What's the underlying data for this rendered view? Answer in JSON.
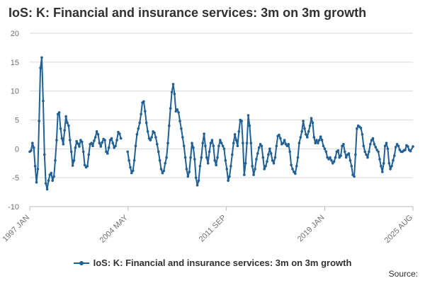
{
  "title": "IoS: K: Financial and insurance services: 3m on 3m growth",
  "legend_label": "IoS: K: Financial and insurance services: 3m on 3m growth",
  "source_label": "Source:",
  "colors": {
    "series": "#206095",
    "grid": "#d9d9d9",
    "text": "#323132"
  },
  "chart_data": {
    "type": "line",
    "title": "IoS: K: Financial and insurance services: 3m on 3m growth",
    "xlabel": "",
    "ylabel": "",
    "ylim": [
      -10,
      20
    ],
    "yticks": [
      -10,
      -5,
      0,
      5,
      10,
      15,
      20
    ],
    "xlim": [
      1997.0,
      2025.583
    ],
    "xticks": [
      {
        "label": "1997 JAN",
        "x": 1997.0
      },
      {
        "label": "2004 MAY",
        "x": 2004.333
      },
      {
        "label": "2011 SEP",
        "x": 2011.667
      },
      {
        "label": "2019 JAN",
        "x": 2019.0
      },
      {
        "label": "2025 AUG",
        "x": 2025.583
      }
    ],
    "series": [
      {
        "name": "IoS: K: Financial and insurance services: 3m on 3m growth",
        "points": [
          [
            1997.0,
            -0.5
          ],
          [
            1997.1,
            -0.3
          ],
          [
            1997.2,
            1.0
          ],
          [
            1997.3,
            0.2
          ],
          [
            1997.4,
            -3.0
          ],
          [
            1997.5,
            -5.8
          ],
          [
            1997.6,
            -3.5
          ],
          [
            1997.7,
            4.8
          ],
          [
            1997.8,
            14.0
          ],
          [
            1997.9,
            15.8
          ],
          [
            1998.0,
            8.3
          ],
          [
            1998.1,
            -1.0
          ],
          [
            1998.2,
            -6.0
          ],
          [
            1998.3,
            -7.0
          ],
          [
            1998.4,
            -5.5
          ],
          [
            1998.5,
            -4.5
          ],
          [
            1998.6,
            -4.2
          ],
          [
            1998.7,
            -5.5
          ],
          [
            1998.8,
            -4.8
          ],
          [
            1998.9,
            -2.0
          ],
          [
            1999.0,
            1.5
          ],
          [
            1999.1,
            6.0
          ],
          [
            1999.2,
            6.3
          ],
          [
            1999.3,
            3.5
          ],
          [
            1999.4,
            1.8
          ],
          [
            1999.5,
            0.8
          ],
          [
            1999.6,
            3.2
          ],
          [
            1999.7,
            5.6
          ],
          [
            1999.8,
            4.5
          ],
          [
            1999.9,
            4.0
          ],
          [
            2000.0,
            1.5
          ],
          [
            2000.1,
            -0.5
          ],
          [
            2000.2,
            -2.9
          ],
          [
            2000.3,
            -2.0
          ],
          [
            2000.4,
            0.2
          ],
          [
            2000.5,
            1.3
          ],
          [
            2000.6,
            0.9
          ],
          [
            2000.7,
            0.4
          ],
          [
            2000.8,
            1.5
          ],
          [
            2000.9,
            1.2
          ],
          [
            2001.0,
            -0.5
          ],
          [
            2001.1,
            -2.8
          ],
          [
            2001.2,
            -3.2
          ],
          [
            2001.3,
            -3.0
          ],
          [
            2001.4,
            -1.0
          ],
          [
            2001.5,
            0.8
          ],
          [
            2001.6,
            1.0
          ],
          [
            2001.7,
            0.5
          ],
          [
            2001.8,
            1.4
          ],
          [
            2001.9,
            2.0
          ],
          [
            2002.0,
            3.0
          ],
          [
            2002.1,
            2.5
          ],
          [
            2002.2,
            1.0
          ],
          [
            2002.3,
            0.4
          ],
          [
            2002.4,
            1.1
          ],
          [
            2002.5,
            1.7
          ],
          [
            2002.6,
            1.5
          ],
          [
            2002.7,
            -0.5
          ],
          [
            2002.8,
            -0.8
          ],
          [
            2002.9,
            0.2
          ],
          [
            2003.0,
            1.5
          ],
          [
            2003.1,
            1.8
          ],
          [
            2003.2,
            1.0
          ],
          [
            2003.3,
            0.2
          ],
          [
            2003.4,
            0.5
          ],
          [
            2003.5,
            1.5
          ],
          [
            2003.6,
            2.9
          ],
          [
            2003.7,
            2.6
          ],
          [
            2003.8,
            1.8
          ],
          [
            2004.3,
            -0.5
          ],
          [
            2004.4,
            -2.0
          ],
          [
            2004.5,
            -3.2
          ],
          [
            2004.6,
            -4.2
          ],
          [
            2004.7,
            -3.8
          ],
          [
            2004.8,
            -2.0
          ],
          [
            2004.9,
            0.5
          ],
          [
            2005.0,
            2.5
          ],
          [
            2005.1,
            3.5
          ],
          [
            2005.2,
            4.5
          ],
          [
            2005.3,
            6.0
          ],
          [
            2005.4,
            8.0
          ],
          [
            2005.5,
            8.2
          ],
          [
            2005.6,
            6.5
          ],
          [
            2005.7,
            4.5
          ],
          [
            2005.8,
            3.0
          ],
          [
            2005.9,
            1.8
          ],
          [
            2006.0,
            1.5
          ],
          [
            2006.1,
            2.0
          ],
          [
            2006.2,
            3.0
          ],
          [
            2006.3,
            2.8
          ],
          [
            2006.4,
            2.0
          ],
          [
            2006.5,
            0.8
          ],
          [
            2006.6,
            -0.5
          ],
          [
            2006.7,
            -2.0
          ],
          [
            2006.8,
            -3.5
          ],
          [
            2006.9,
            -4.2
          ],
          [
            2007.0,
            -3.8
          ],
          [
            2007.1,
            -2.5
          ],
          [
            2007.2,
            -1.5
          ],
          [
            2007.3,
            1.0
          ],
          [
            2007.4,
            4.0
          ],
          [
            2007.5,
            7.0
          ],
          [
            2007.6,
            9.8
          ],
          [
            2007.7,
            11.2
          ],
          [
            2007.8,
            9.5
          ],
          [
            2007.9,
            6.5
          ],
          [
            2008.0,
            6.8
          ],
          [
            2008.1,
            6.3
          ],
          [
            2008.2,
            4.8
          ],
          [
            2008.3,
            3.5
          ],
          [
            2008.4,
            2.0
          ],
          [
            2008.5,
            0.5
          ],
          [
            2008.6,
            -1.5
          ],
          [
            2008.7,
            -3.5
          ],
          [
            2008.8,
            -4.8
          ],
          [
            2008.9,
            -4.0
          ],
          [
            2009.0,
            -1.5
          ],
          [
            2009.1,
            1.0
          ],
          [
            2009.2,
            0.2
          ],
          [
            2009.3,
            -1.8
          ],
          [
            2009.4,
            -5.0
          ],
          [
            2009.5,
            -6.3
          ],
          [
            2009.6,
            -5.5
          ],
          [
            2009.7,
            -3.0
          ],
          [
            2009.8,
            -1.5
          ],
          [
            2009.9,
            1.0
          ],
          [
            2010.0,
            2.6
          ],
          [
            2010.1,
            0.5
          ],
          [
            2010.2,
            -1.5
          ],
          [
            2010.3,
            -2.5
          ],
          [
            2010.4,
            -0.5
          ],
          [
            2010.5,
            1.0
          ],
          [
            2010.6,
            1.5
          ],
          [
            2010.7,
            0.5
          ],
          [
            2010.8,
            -2.0
          ],
          [
            2010.9,
            -2.8
          ],
          [
            2011.0,
            -1.5
          ],
          [
            2011.1,
            0.5
          ],
          [
            2011.2,
            1.5
          ],
          [
            2011.3,
            1.0
          ],
          [
            2011.4,
            0.5
          ],
          [
            2011.5,
            0.0
          ],
          [
            2011.6,
            -2.0
          ],
          [
            2011.7,
            -3.5
          ],
          [
            2011.8,
            -5.5
          ],
          [
            2011.9,
            -4.8
          ],
          [
            2012.0,
            -3.0
          ],
          [
            2012.1,
            -1.0
          ],
          [
            2012.2,
            1.0
          ],
          [
            2012.3,
            2.5
          ],
          [
            2012.4,
            1.5
          ],
          [
            2012.5,
            0.5
          ],
          [
            2012.6,
            3.0
          ],
          [
            2012.7,
            5.0
          ],
          [
            2012.8,
            4.8
          ],
          [
            2012.9,
            1.0
          ],
          [
            2013.0,
            -4.5
          ],
          [
            2013.1,
            -2.5
          ],
          [
            2013.2,
            1.0
          ],
          [
            2013.3,
            5.8
          ],
          [
            2013.4,
            4.0
          ],
          [
            2013.5,
            1.0
          ],
          [
            2013.6,
            -3.0
          ],
          [
            2013.7,
            -4.5
          ],
          [
            2013.8,
            -3.5
          ],
          [
            2013.9,
            -1.8
          ],
          [
            2014.0,
            -0.8
          ],
          [
            2014.1,
            0.2
          ],
          [
            2014.2,
            0.8
          ],
          [
            2014.3,
            0.5
          ],
          [
            2014.4,
            -1.5
          ],
          [
            2014.5,
            -3.5
          ],
          [
            2014.6,
            -3.0
          ],
          [
            2014.7,
            -2.2
          ],
          [
            2014.8,
            -1.0
          ],
          [
            2014.9,
            0.0
          ],
          [
            2015.0,
            -0.8
          ],
          [
            2015.1,
            -2.0
          ],
          [
            2015.2,
            -2.5
          ],
          [
            2015.3,
            -1.5
          ],
          [
            2015.4,
            0.5
          ],
          [
            2015.5,
            2.2
          ],
          [
            2015.6,
            2.4
          ],
          [
            2015.7,
            1.8
          ],
          [
            2015.8,
            0.8
          ],
          [
            2015.9,
            1.0
          ],
          [
            2016.0,
            1.5
          ],
          [
            2016.1,
            0.8
          ],
          [
            2016.2,
            0.5
          ],
          [
            2016.3,
            0.8
          ],
          [
            2016.4,
            -0.5
          ],
          [
            2016.5,
            -2.8
          ],
          [
            2016.6,
            -3.5
          ],
          [
            2016.7,
            -4.0
          ],
          [
            2016.8,
            -4.3
          ],
          [
            2016.9,
            -3.0
          ],
          [
            2017.0,
            -1.5
          ],
          [
            2017.1,
            1.0
          ],
          [
            2017.2,
            2.0
          ],
          [
            2017.3,
            3.0
          ],
          [
            2017.4,
            4.8
          ],
          [
            2017.5,
            3.5
          ],
          [
            2017.6,
            2.5
          ],
          [
            2017.7,
            2.0
          ],
          [
            2017.8,
            3.0
          ],
          [
            2017.9,
            4.0
          ],
          [
            2018.0,
            5.3
          ],
          [
            2018.1,
            4.5
          ],
          [
            2018.2,
            2.0
          ],
          [
            2018.3,
            1.0
          ],
          [
            2018.4,
            1.5
          ],
          [
            2018.5,
            1.0
          ],
          [
            2018.6,
            1.5
          ],
          [
            2018.7,
            2.1
          ],
          [
            2018.8,
            1.5
          ],
          [
            2018.9,
            0.5
          ],
          [
            2019.0,
            0.0
          ],
          [
            2019.1,
            -0.5
          ],
          [
            2019.2,
            -1.5
          ],
          [
            2019.3,
            -1.8
          ],
          [
            2019.4,
            -1.5
          ],
          [
            2019.5,
            -2.0
          ],
          [
            2019.6,
            -2.5
          ],
          [
            2019.7,
            -2.2
          ],
          [
            2019.8,
            -1.5
          ],
          [
            2019.9,
            -0.5
          ],
          [
            2020.0,
            -0.3
          ],
          [
            2020.1,
            -1.5
          ],
          [
            2020.2,
            -1.2
          ],
          [
            2020.3,
            0.5
          ],
          [
            2020.4,
            0.8
          ],
          [
            2020.5,
            -0.5
          ],
          [
            2020.6,
            -1.5
          ],
          [
            2020.7,
            -1.0
          ],
          [
            2020.8,
            -0.8
          ],
          [
            2020.9,
            -2.0
          ],
          [
            2021.0,
            -3.0
          ],
          [
            2021.1,
            -4.5
          ],
          [
            2021.2,
            -4.8
          ],
          [
            2021.3,
            -1.0
          ],
          [
            2021.4,
            3.5
          ],
          [
            2021.5,
            4.0
          ],
          [
            2021.6,
            3.8
          ],
          [
            2021.7,
            3.6
          ],
          [
            2021.8,
            2.5
          ],
          [
            2021.9,
            0.5
          ],
          [
            2022.0,
            -0.5
          ],
          [
            2022.1,
            -1.0
          ],
          [
            2022.2,
            -1.5
          ],
          [
            2022.3,
            -0.5
          ],
          [
            2022.4,
            0.8
          ],
          [
            2022.5,
            1.5
          ],
          [
            2022.6,
            1.8
          ],
          [
            2022.7,
            0.8
          ],
          [
            2022.8,
            0.3
          ],
          [
            2022.9,
            -0.2
          ],
          [
            2023.0,
            -0.5
          ],
          [
            2023.1,
            -1.8
          ],
          [
            2023.2,
            -3.0
          ],
          [
            2023.3,
            -4.0
          ],
          [
            2023.4,
            -2.5
          ],
          [
            2023.5,
            0.5
          ],
          [
            2023.6,
            1.0
          ],
          [
            2023.7,
            0.0
          ],
          [
            2023.8,
            -2.5
          ],
          [
            2023.9,
            -3.5
          ],
          [
            2024.0,
            -3.0
          ],
          [
            2024.1,
            -2.0
          ],
          [
            2024.2,
            -1.2
          ],
          [
            2024.3,
            0.3
          ],
          [
            2024.4,
            0.8
          ],
          [
            2024.5,
            0.5
          ],
          [
            2024.6,
            -0.2
          ],
          [
            2024.7,
            -0.5
          ],
          [
            2024.8,
            -0.5
          ],
          [
            2024.9,
            -0.3
          ],
          [
            2025.0,
            -0.2
          ],
          [
            2025.1,
            0.6
          ],
          [
            2025.2,
            0.4
          ],
          [
            2025.3,
            -0.2
          ],
          [
            2025.4,
            -0.4
          ],
          [
            2025.583,
            0.4
          ]
        ]
      }
    ]
  }
}
